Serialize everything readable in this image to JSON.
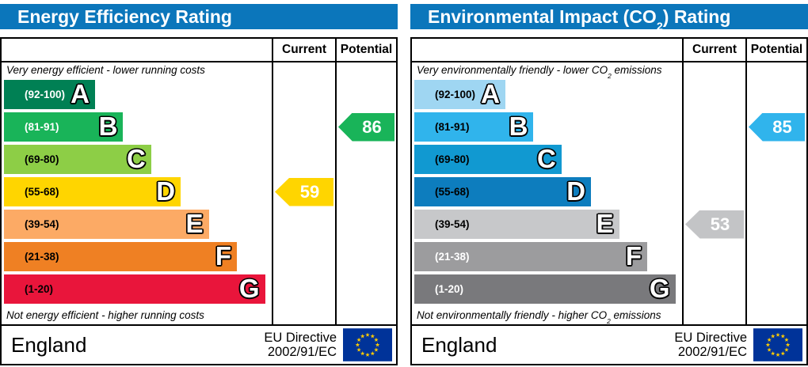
{
  "colors": {
    "header_bg": "#0b76bb",
    "header_text": "#ffffff",
    "border": "#000000",
    "flag_bg": "#003399",
    "flag_star": "#ffcc00"
  },
  "panels": [
    {
      "title_pre": "Energy Efficiency Rating",
      "title_sub": "",
      "title_post": "",
      "columns": {
        "current": "Current",
        "potential": "Potential"
      },
      "top_note_pre": "Very energy efficient - lower running costs",
      "top_note_sub": "",
      "top_note_post": "",
      "bottom_note_pre": "Not energy efficient - higher running costs",
      "bottom_note_sub": "",
      "bottom_note_post": "",
      "bands": [
        {
          "letter": "A",
          "range": "(92-100)",
          "color": "#008054",
          "label_color": "#ffffff",
          "width_pct": 34
        },
        {
          "letter": "B",
          "range": "(81-91)",
          "color": "#19b459",
          "label_color": "#ffffff",
          "width_pct": 44.5
        },
        {
          "letter": "C",
          "range": "(69-80)",
          "color": "#8dce46",
          "label_color": "#000000",
          "width_pct": 55
        },
        {
          "letter": "D",
          "range": "(55-68)",
          "color": "#ffd500",
          "label_color": "#000000",
          "width_pct": 66
        },
        {
          "letter": "E",
          "range": "(39-54)",
          "color": "#fcaa65",
          "label_color": "#000000",
          "width_pct": 76.5
        },
        {
          "letter": "F",
          "range": "(21-38)",
          "color": "#ef8023",
          "label_color": "#000000",
          "width_pct": 87
        },
        {
          "letter": "G",
          "range": "(1-20)",
          "color": "#e9153b",
          "label_color": "#000000",
          "width_pct": 97.5
        }
      ],
      "current": {
        "value": 59,
        "band": "D",
        "color": "#ffd500",
        "text_color": "#ffffff"
      },
      "potential": {
        "value": 86,
        "band": "B",
        "color": "#19b459",
        "text_color": "#ffffff"
      },
      "footer": {
        "region": "England",
        "directive_line1": "EU Directive",
        "directive_line2": "2002/91/EC"
      }
    },
    {
      "title_pre": "Environmental Impact (CO",
      "title_sub": "2",
      "title_post": ") Rating",
      "columns": {
        "current": "Current",
        "potential": "Potential"
      },
      "top_note_pre": "Very environmentally friendly - lower CO",
      "top_note_sub": "2",
      "top_note_post": " emissions",
      "bottom_note_pre": "Not environmentally friendly - higher CO",
      "bottom_note_sub": "2",
      "bottom_note_post": " emissions",
      "bands": [
        {
          "letter": "A",
          "range": "(92-100)",
          "color": "#9fd6f2",
          "label_color": "#000000",
          "width_pct": 34
        },
        {
          "letter": "B",
          "range": "(81-91)",
          "color": "#30b4ec",
          "label_color": "#000000",
          "width_pct": 44.5
        },
        {
          "letter": "C",
          "range": "(69-80)",
          "color": "#1199d1",
          "label_color": "#000000",
          "width_pct": 55
        },
        {
          "letter": "D",
          "range": "(55-68)",
          "color": "#0d7dbe",
          "label_color": "#000000",
          "width_pct": 66
        },
        {
          "letter": "E",
          "range": "(39-54)",
          "color": "#c7c8ca",
          "label_color": "#000000",
          "width_pct": 76.5
        },
        {
          "letter": "F",
          "range": "(21-38)",
          "color": "#9c9c9e",
          "label_color": "#ffffff",
          "width_pct": 87
        },
        {
          "letter": "G",
          "range": "(1-20)",
          "color": "#79797c",
          "label_color": "#ffffff",
          "width_pct": 97.5
        }
      ],
      "current": {
        "value": 53,
        "band": "E",
        "color": "#c3c4c6",
        "text_color": "#ffffff"
      },
      "potential": {
        "value": 85,
        "band": "B",
        "color": "#30b4ec",
        "text_color": "#ffffff"
      },
      "footer": {
        "region": "England",
        "directive_line1": "EU Directive",
        "directive_line2": "2002/91/EC"
      }
    }
  ],
  "chart_data": [
    {
      "type": "bar",
      "orientation": "horizontal",
      "title": "Energy Efficiency Rating",
      "categories": [
        "A",
        "B",
        "C",
        "D",
        "E",
        "F",
        "G"
      ],
      "band_ranges": [
        "92-100",
        "81-91",
        "69-80",
        "55-68",
        "39-54",
        "21-38",
        "1-20"
      ],
      "band_colors": [
        "#008054",
        "#19b459",
        "#8dce46",
        "#ffd500",
        "#fcaa65",
        "#ef8023",
        "#e9153b"
      ],
      "series": [
        {
          "name": "Current",
          "value": 59,
          "band": "D",
          "color": "#ffd500"
        },
        {
          "name": "Potential",
          "value": 86,
          "band": "B",
          "color": "#19b459"
        }
      ],
      "xlim": [
        1,
        100
      ],
      "annotations": [
        "Very energy efficient - lower running costs",
        "Not energy efficient - higher running costs"
      ]
    },
    {
      "type": "bar",
      "orientation": "horizontal",
      "title": "Environmental Impact (CO₂) Rating",
      "categories": [
        "A",
        "B",
        "C",
        "D",
        "E",
        "F",
        "G"
      ],
      "band_ranges": [
        "92-100",
        "81-91",
        "69-80",
        "55-68",
        "39-54",
        "21-38",
        "1-20"
      ],
      "band_colors": [
        "#9fd6f2",
        "#30b4ec",
        "#1199d1",
        "#0d7dbe",
        "#c7c8ca",
        "#9c9c9e",
        "#79797c"
      ],
      "series": [
        {
          "name": "Current",
          "value": 53,
          "band": "E",
          "color": "#c3c4c6"
        },
        {
          "name": "Potential",
          "value": 85,
          "band": "B",
          "color": "#30b4ec"
        }
      ],
      "xlim": [
        1,
        100
      ],
      "annotations": [
        "Very environmentally friendly - lower CO₂ emissions",
        "Not environmentally friendly - higher CO₂ emissions"
      ]
    }
  ]
}
